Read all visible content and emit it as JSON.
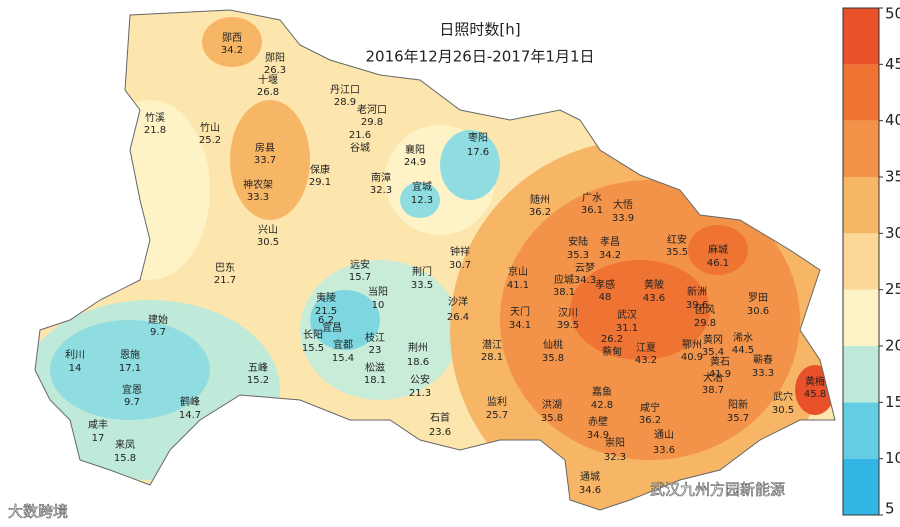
{
  "title": "日照时数[h]",
  "subtitle": "2016年12月26日-2017年1月1日",
  "stations": [
    {
      "name": "郧西",
      "value": 34.2
    },
    {
      "name": "郧阳",
      "value": 26.3
    },
    {
      "name": "十堰",
      "value": 26.8
    },
    {
      "name": "丹江口",
      "value": 28.9
    },
    {
      "name": "老河口",
      "value": 29.8
    },
    {
      "name": "谷城",
      "value": 21.6
    },
    {
      "name": "竹溪",
      "value": 21.8
    },
    {
      "name": "竹山",
      "value": 25.2
    },
    {
      "name": "房县",
      "value": 33.7
    },
    {
      "name": "神农架",
      "value": 33.3
    },
    {
      "name": "保康",
      "value": 29.1
    },
    {
      "name": "南漳",
      "value": 32.3
    },
    {
      "name": "襄阳",
      "value": 24.9
    },
    {
      "name": "枣阳",
      "value": 17.6
    },
    {
      "name": "宜城",
      "value": 12.3
    },
    {
      "name": "兴山",
      "value": 30.5
    },
    {
      "name": "巴东",
      "value": 21.7
    },
    {
      "name": "远安",
      "value": 15.7
    },
    {
      "name": "钟祥",
      "value": 30.7
    },
    {
      "name": "荆门",
      "value": 33.5
    },
    {
      "name": "随州",
      "value": 36.2
    },
    {
      "name": "广水",
      "value": 36.1
    },
    {
      "name": "大悟",
      "value": 33.9
    },
    {
      "name": "安陆",
      "value": 35.3
    },
    {
      "name": "孝昌",
      "value": 34.2
    },
    {
      "name": "云梦",
      "value": 34.3
    },
    {
      "name": "应城",
      "value": 38.1
    },
    {
      "name": "红安",
      "value": 35.5
    },
    {
      "name": "麻城",
      "value": 46.1
    },
    {
      "name": "京山",
      "value": 41.1
    },
    {
      "name": "孝感",
      "value": 48
    },
    {
      "name": "黄陂",
      "value": 43.6
    },
    {
      "name": "新洲",
      "value": 39.6
    },
    {
      "name": "团风",
      "value": 29.8
    },
    {
      "name": "罗田",
      "value": 30.6
    },
    {
      "name": "天门",
      "value": 34.1
    },
    {
      "name": "沙洋",
      "value": 26.4
    },
    {
      "name": "夷陵",
      "value": 21.5
    },
    {
      "name": "当阳",
      "value": 10
    },
    {
      "name": "宜昌",
      "value": 6.2
    },
    {
      "name": "长阳",
      "value": 15.5
    },
    {
      "name": "宜都",
      "value": 15.4
    },
    {
      "name": "枝江",
      "value": 23
    },
    {
      "name": "松滋",
      "value": 18.1
    },
    {
      "name": "荆州",
      "value": 18.6
    },
    {
      "name": "潜江",
      "value": 28.1
    },
    {
      "name": "仙桃",
      "value": 35.8
    },
    {
      "name": "汉川",
      "value": 39.5
    },
    {
      "name": "武汉",
      "value": 31.1
    },
    {
      "name": "蔡甸",
      "value": 26.2
    },
    {
      "name": "江夏",
      "value": 43.2
    },
    {
      "name": "鄂州",
      "value": 40.9
    },
    {
      "name": "黄冈",
      "value": 35.4
    },
    {
      "name": "黄石",
      "value": 41.9
    },
    {
      "name": "浠水",
      "value": 44.5
    },
    {
      "name": "蕲春",
      "value": 33.3
    },
    {
      "name": "大冶",
      "value": 38.7
    },
    {
      "name": "阳新",
      "value": 35.7
    },
    {
      "name": "武穴",
      "value": 30.5
    },
    {
      "name": "黄梅",
      "value": 45.8
    },
    {
      "name": "公安",
      "value": 21.3
    },
    {
      "name": "石首",
      "value": 23.6
    },
    {
      "name": "监利",
      "value": 25.7
    },
    {
      "name": "洪湖",
      "value": 35.8
    },
    {
      "name": "嘉鱼",
      "value": 42.8
    },
    {
      "name": "咸宁",
      "value": 36.2
    },
    {
      "name": "赤壁",
      "value": 34.9
    },
    {
      "name": "崇阳",
      "value": 32.3
    },
    {
      "name": "通山",
      "value": 33.6
    },
    {
      "name": "通城",
      "value": 34.6
    },
    {
      "name": "利川",
      "value": 14
    },
    {
      "name": "恩施",
      "value": 17.1
    },
    {
      "name": "建始",
      "value": 9.7
    },
    {
      "name": "宜恩",
      "value": 9.7
    },
    {
      "name": "鹤峰",
      "value": 14.7
    },
    {
      "name": "咸丰",
      "value": 17
    },
    {
      "name": "来凤",
      "value": 15.8
    },
    {
      "name": "五峰",
      "value": 15.2
    }
  ],
  "colorbar": {
    "ticks": [
      5,
      10,
      15,
      20,
      25,
      30,
      35,
      40,
      45,
      50
    ],
    "colors": [
      "#33b6e6",
      "#62cde3",
      "#bfe9d9",
      "#fdf3c6",
      "#fbd896",
      "#f7b566",
      "#f39349",
      "#ef7333",
      "#e9512a"
    ]
  },
  "watermarks": [
    "大数跨境",
    "武汉九州方园新能源"
  ]
}
